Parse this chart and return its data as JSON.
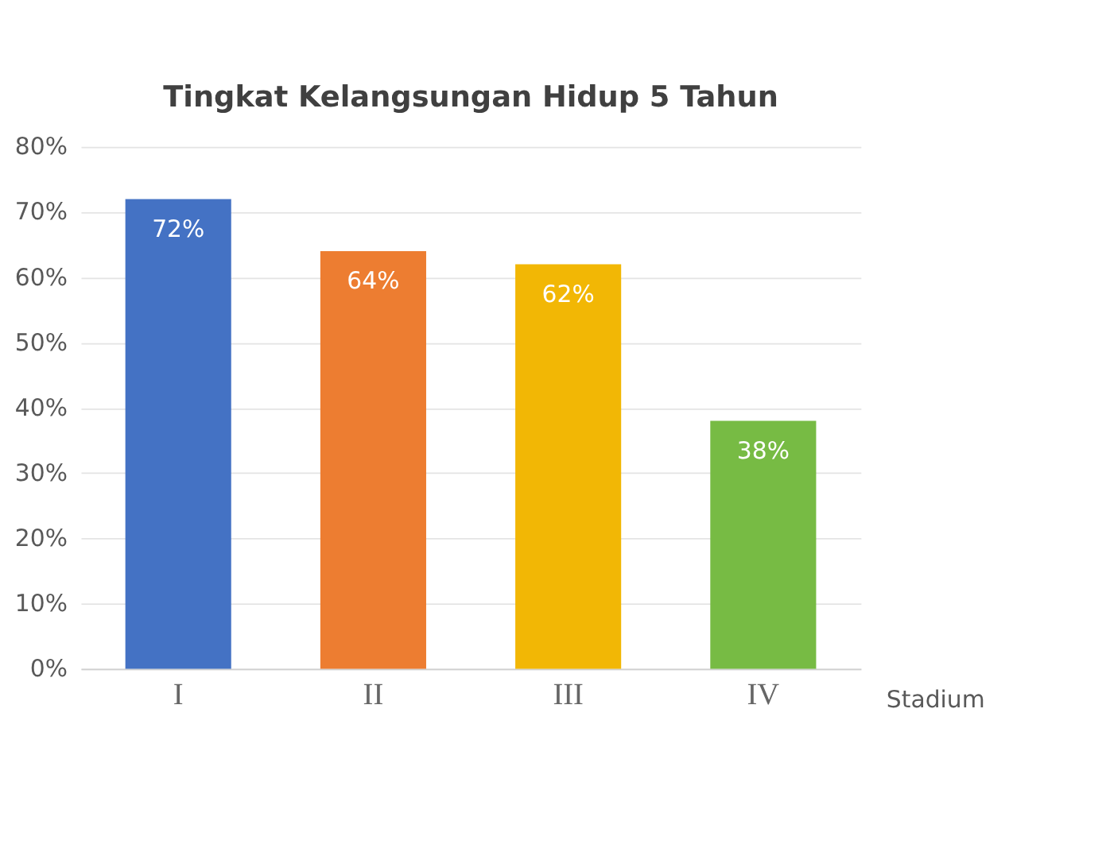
{
  "chart_data": {
    "type": "bar",
    "title": "Tingkat Kelangsungan Hidup 5 Tahun",
    "xlabel": "Stadium",
    "categories": [
      "I",
      "II",
      "III",
      "IV"
    ],
    "values": [
      72,
      64,
      62,
      38
    ],
    "colors": [
      "#4472c4",
      "#ed7d31",
      "#f2b705",
      "#77bb44"
    ],
    "value_labels": [
      "72%",
      "64%",
      "62%",
      "38%"
    ],
    "ylim": [
      0,
      80
    ],
    "yticks": [
      {
        "value": 0,
        "label": "0%"
      },
      {
        "value": 10,
        "label": "10%"
      },
      {
        "value": 20,
        "label": "20%"
      },
      {
        "value": 30,
        "label": "30%"
      },
      {
        "value": 40,
        "label": "40%"
      },
      {
        "value": 50,
        "label": "50%"
      },
      {
        "value": 60,
        "label": "60%"
      },
      {
        "value": 70,
        "label": "70%"
      },
      {
        "value": 80,
        "label": "80%"
      }
    ],
    "grid": "y"
  }
}
